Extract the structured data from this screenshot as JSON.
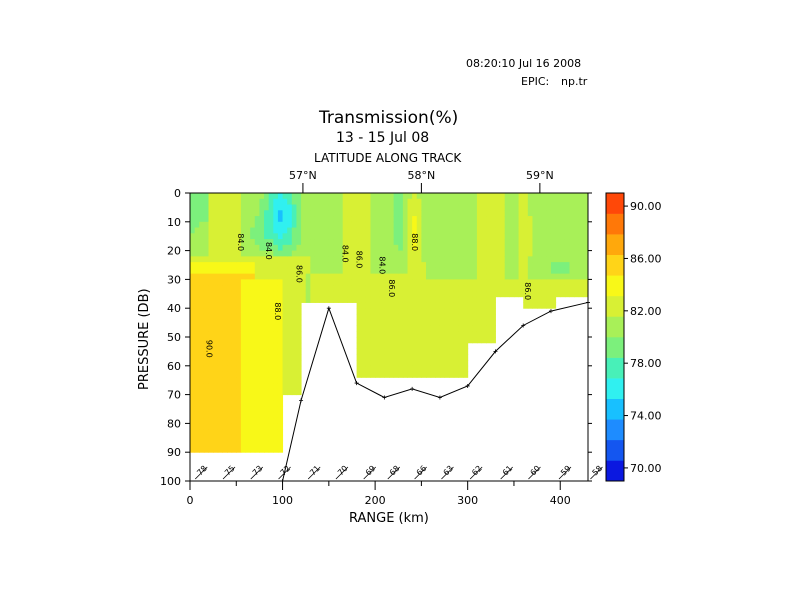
{
  "header": {
    "timestamp": "08:20:10 Jul 16 2008",
    "epic_label": "EPIC:",
    "epic_file": "np.tr"
  },
  "chart_data": {
    "type": "heatmap",
    "title": "Transmission(%)",
    "subtitle": "13 - 15 Jul 08",
    "top_axis_label": "LATITUDE ALONG TRACK",
    "xlabel": "RANGE (km)",
    "ylabel": "PRESSURE (DB)",
    "xlim": [
      0,
      430
    ],
    "ylim": [
      100,
      0
    ],
    "x_ticks": [
      0,
      100,
      200,
      300,
      400
    ],
    "y_ticks": [
      0,
      10,
      20,
      30,
      40,
      50,
      60,
      70,
      80,
      90,
      100
    ],
    "latitude_ticks": [
      {
        "label": "57°N",
        "x": 122
      },
      {
        "label": "58°N",
        "x": 250
      },
      {
        "label": "59°N",
        "x": 378
      }
    ],
    "colorbar": {
      "min": 69,
      "max": 91,
      "step": 2,
      "labels": [
        "90.00",
        "86.00",
        "82.00",
        "78.00",
        "74.00",
        "70.00"
      ],
      "label_values": [
        90,
        86,
        82,
        78,
        74,
        70
      ],
      "colors": [
        "#0b18e0",
        "#1456f0",
        "#1e8cff",
        "#18c0ff",
        "#30f0f0",
        "#48f0b8",
        "#7cf07c",
        "#a8f058",
        "#d8f034",
        "#f8f818",
        "#ffd418",
        "#ffa80c",
        "#ff7808",
        "#ff4808"
      ]
    },
    "contour_labels": [
      {
        "text": "84.0",
        "x": 52,
        "y": 14
      },
      {
        "text": "84.0",
        "x": 82,
        "y": 17
      },
      {
        "text": "86.0",
        "x": 115,
        "y": 25
      },
      {
        "text": "88.0",
        "x": 92,
        "y": 38
      },
      {
        "text": "90.0",
        "x": 18,
        "y": 51
      },
      {
        "text": "84.0",
        "x": 165,
        "y": 18
      },
      {
        "text": "86.0",
        "x": 180,
        "y": 20
      },
      {
        "text": "84.0",
        "x": 205,
        "y": 22
      },
      {
        "text": "86.0",
        "x": 215,
        "y": 30
      },
      {
        "text": "88.0",
        "x": 240,
        "y": 14
      },
      {
        "text": "86.0",
        "x": 362,
        "y": 31
      }
    ],
    "stations": [
      {
        "label": "78",
        "x": 10
      },
      {
        "label": "75",
        "x": 40
      },
      {
        "label": "73",
        "x": 70
      },
      {
        "label": "72",
        "x": 100
      },
      {
        "label": "71",
        "x": 132
      },
      {
        "label": "70",
        "x": 162
      },
      {
        "label": "69",
        "x": 192
      },
      {
        "label": "68",
        "x": 218
      },
      {
        "label": "66",
        "x": 247
      },
      {
        "label": "63",
        "x": 276
      },
      {
        "label": "62",
        "x": 307
      },
      {
        "label": "61",
        "x": 340
      },
      {
        "label": "60",
        "x": 370
      },
      {
        "label": "59",
        "x": 403
      },
      {
        "label": "58",
        "x": 437
      }
    ],
    "bottom_depth_line": {
      "x": [
        100,
        120,
        150,
        180,
        210,
        240,
        270,
        300,
        330,
        360,
        390,
        430
      ],
      "y": [
        100,
        72,
        40,
        66,
        71,
        68,
        71,
        67,
        55,
        46,
        41,
        38
      ]
    }
  }
}
